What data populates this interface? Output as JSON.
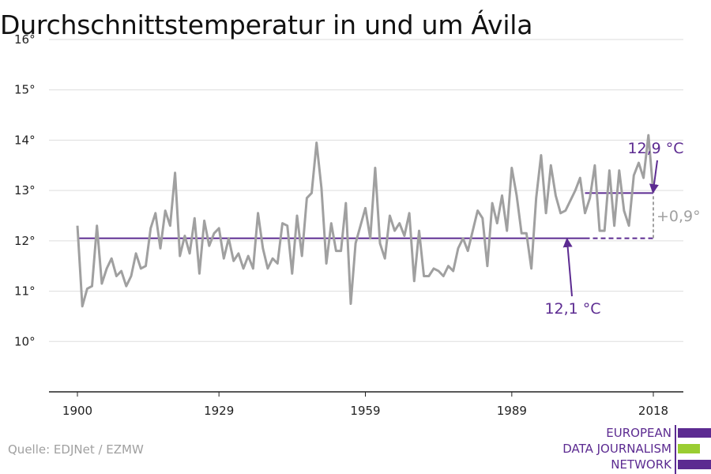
{
  "title": "Durchschnittstemperatur in und um Ávila",
  "source": "Quelle: EDJNet / EZMW",
  "logo": {
    "lines": [
      "EUROPEAN",
      "DATA JOURNALISM",
      "NETWORK"
    ],
    "colors": [
      "#5c2b91",
      "#9acd32",
      "#5c2b91"
    ]
  },
  "chart_data": {
    "type": "line",
    "title": "Durchschnittstemperatur in und um Ávila",
    "xlabel": "",
    "ylabel": "",
    "xlim": [
      1900,
      2018
    ],
    "ylim": [
      9.0,
      16.0
    ],
    "x_ticks": [
      1900,
      1929,
      1959,
      1989,
      2018
    ],
    "x_tick_labels": [
      "1900",
      "1929",
      "1959",
      "1989",
      "2018"
    ],
    "y_ticks": [
      10,
      11,
      12,
      13,
      14,
      15,
      16
    ],
    "y_tick_labels": [
      "10°",
      "11°",
      "12°",
      "13°",
      "14°",
      "15°",
      "16°"
    ],
    "grid": true,
    "colors": {
      "series": "#a0a0a0",
      "reference": "#5c2b91",
      "diff": "#a0a0a0"
    },
    "series": [
      {
        "x_start": 1900,
        "x_step": 1,
        "values": [
          12.3,
          10.7,
          11.05,
          11.1,
          12.3,
          11.15,
          11.45,
          11.65,
          11.3,
          11.4,
          11.1,
          11.3,
          11.75,
          11.45,
          11.5,
          12.25,
          12.55,
          11.85,
          12.6,
          12.3,
          13.35,
          11.7,
          12.1,
          11.75,
          12.45,
          11.35,
          12.4,
          11.9,
          12.15,
          12.25,
          11.65,
          12.05,
          11.6,
          11.75,
          11.45,
          11.7,
          11.45,
          12.55,
          11.85,
          11.45,
          11.65,
          11.55,
          12.35,
          12.3,
          11.35,
          12.5,
          11.7,
          12.85,
          12.95,
          13.95,
          13.05,
          11.55,
          12.35,
          11.8,
          11.8,
          12.75,
          10.75,
          11.95,
          12.3,
          12.65,
          12.05,
          13.45,
          11.95,
          11.65,
          12.5,
          12.2,
          12.35,
          12.1,
          12.55,
          11.2,
          12.2,
          11.3,
          11.3,
          11.45,
          11.4,
          11.3,
          11.5,
          11.4,
          11.85,
          12.05,
          11.8,
          12.2,
          12.6,
          12.45,
          11.5,
          12.75,
          12.35,
          12.9,
          12.2,
          13.45,
          12.9,
          12.15,
          12.15,
          11.45,
          12.85,
          13.7,
          12.55,
          13.5,
          12.9,
          12.55,
          12.6,
          12.8,
          13.0,
          13.25,
          12.55,
          12.85,
          13.5,
          12.2,
          12.2,
          13.4,
          12.3,
          13.4,
          12.6,
          12.3,
          13.3,
          13.55,
          13.25,
          14.1,
          12.95
        ]
      }
    ],
    "reference_lines": [
      {
        "label": "12,1 °C",
        "value": 12.05,
        "x_from": 1900,
        "x_solid_to": 2004,
        "x_to": 2018
      },
      {
        "label": "12,9 °C",
        "value": 12.95,
        "x_from": 2004,
        "x_to": 2018
      }
    ],
    "difference": {
      "label": "+0,9°"
    }
  }
}
